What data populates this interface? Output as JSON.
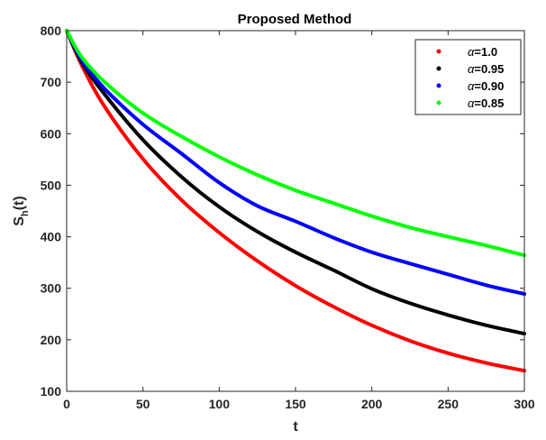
{
  "chart_data": {
    "type": "line",
    "title": "Proposed Method",
    "xlabel": "t",
    "ylabel_main": "S",
    "ylabel_sub": "h",
    "ylabel_tail": "(t)",
    "xlim": [
      0,
      300
    ],
    "ylim": [
      100,
      800
    ],
    "xticks": [
      0,
      50,
      100,
      150,
      200,
      250,
      300
    ],
    "yticks": [
      100,
      200,
      300,
      400,
      500,
      600,
      700,
      800
    ],
    "grid": false,
    "legend_position": "top-right",
    "x": [
      0,
      10,
      25,
      50,
      75,
      100,
      125,
      150,
      175,
      200,
      225,
      250,
      275,
      300
    ],
    "series": [
      {
        "name": "α=1.0",
        "symbol": "α",
        "value_text": "=1.0",
        "color": "#ff0000",
        "values": [
          800,
          732,
          652,
          551,
          472,
          408,
          353,
          305,
          264,
          228,
          198,
          174,
          155,
          140
        ]
      },
      {
        "name": "α=0.95",
        "symbol": "α",
        "value_text": "=0.95",
        "color": "#000000",
        "values": [
          800,
          738,
          676,
          588,
          517,
          458,
          410,
          370,
          335,
          299,
          271,
          248,
          228,
          212
        ]
      },
      {
        "name": "α=0.90",
        "symbol": "α",
        "value_text": "=0.90",
        "color": "#0000ff",
        "values": [
          800,
          742,
          687,
          618,
          562,
          505,
          460,
          430,
          398,
          370,
          348,
          327,
          306,
          289
        ]
      },
      {
        "name": "α=0.85",
        "symbol": "α",
        "value_text": "=0.85",
        "color": "#00ff00",
        "values": [
          800,
          748,
          700,
          640,
          595,
          555,
          520,
          490,
          465,
          440,
          418,
          400,
          383,
          364
        ]
      }
    ]
  }
}
